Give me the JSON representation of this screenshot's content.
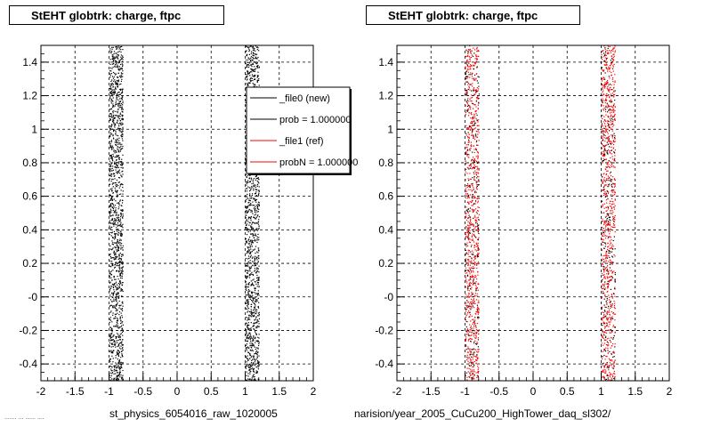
{
  "panels": {
    "left": {
      "title": "StEHT globtrk: charge, ftpc",
      "footer": "st_physics_6054016_raw_1020005"
    },
    "right": {
      "title": "StEHT globtrk: charge, ftpc",
      "footer": "narision/year_2005_CuCu200_HighTower_daq_sl302/"
    }
  },
  "footer_small": "....... ... ...... ....",
  "legend": {
    "entries": [
      {
        "label": "_file0 (new)",
        "color": "#000000"
      },
      {
        "label": "prob = 1.000000",
        "color": "#000000"
      },
      {
        "label": "_file1 (ref)",
        "color": "#ff0000"
      },
      {
        "label": "probN = 1.000000",
        "color": "#ff0000"
      }
    ]
  },
  "chart_data": [
    {
      "type": "scatter",
      "title": "StEHT globtrk: charge, ftpc",
      "xlabel": "",
      "ylabel": "",
      "xlim": [
        -2,
        2
      ],
      "ylim": [
        -0.5,
        1.5
      ],
      "grid": true,
      "x_ticks": [
        "-2",
        "-1.5",
        "-1",
        "-0.5",
        "0",
        "0.5",
        "1",
        "1.5",
        "2"
      ],
      "y_ticks": [
        "-0.4",
        "-0.2",
        "-0",
        "0.2",
        "0.4",
        "0.6",
        "0.8",
        "1",
        "1.2",
        "1.4"
      ],
      "series": [
        {
          "color": "#000000",
          "bands": [
            {
              "x": [
                -1.0,
                -0.8
              ],
              "y": [
                -0.5,
                1.5
              ]
            },
            {
              "x": [
                1.0,
                1.2
              ],
              "y": [
                -0.5,
                1.5
              ]
            }
          ]
        }
      ]
    },
    {
      "type": "scatter",
      "title": "StEHT globtrk: charge, ftpc",
      "xlabel": "",
      "ylabel": "",
      "xlim": [
        -2,
        2
      ],
      "ylim": [
        -0.5,
        1.5
      ],
      "grid": true,
      "x_ticks": [
        "-2",
        "-1.5",
        "-1",
        "-0.5",
        "0",
        "0.5",
        "1",
        "1.5",
        "2"
      ],
      "y_ticks": [
        "-0.4",
        "-0.2",
        "-0",
        "0.2",
        "0.4",
        "0.6",
        "0.8",
        "1",
        "1.2",
        "1.4"
      ],
      "series": [
        {
          "color": "#ff0000",
          "bands": [
            {
              "x": [
                -1.0,
                -0.8
              ],
              "y": [
                -0.5,
                1.5
              ]
            },
            {
              "x": [
                1.0,
                1.2
              ],
              "y": [
                -0.5,
                1.5
              ]
            }
          ]
        },
        {
          "color": "#000000",
          "bands": [
            {
              "x": [
                -1.0,
                -0.8
              ],
              "y": [
                -0.5,
                1.5
              ]
            },
            {
              "x": [
                1.0,
                1.2
              ],
              "y": [
                -0.5,
                1.5
              ]
            }
          ]
        }
      ]
    }
  ]
}
